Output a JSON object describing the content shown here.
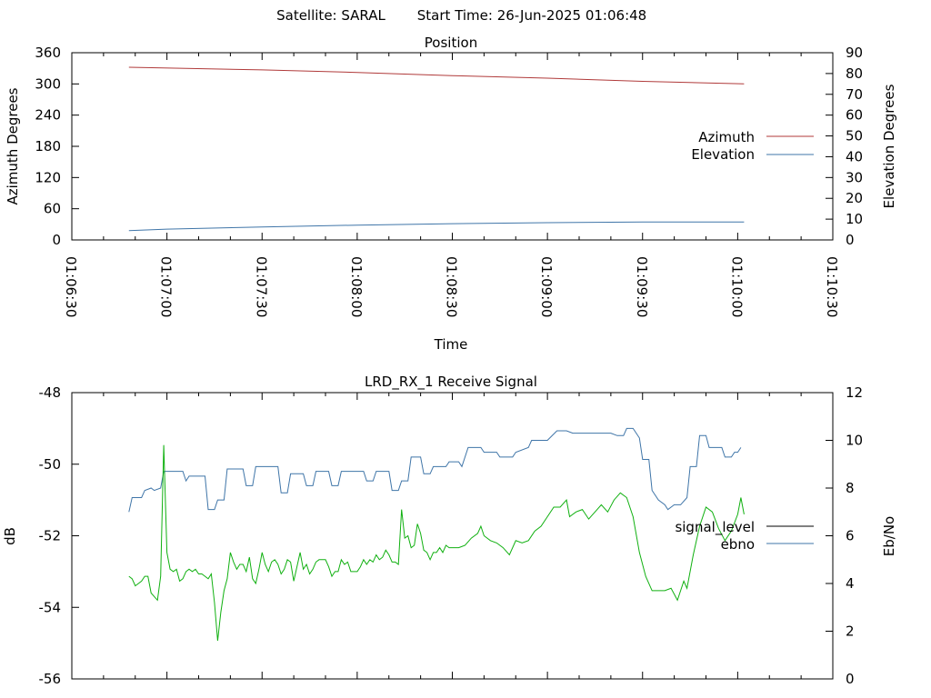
{
  "header": {
    "satellite": "Satellite: SARAL",
    "start_time": "Start Time: 26-Jun-2025 01:06:48"
  },
  "chart_data": [
    {
      "type": "line",
      "title": "Position",
      "xlabel": "Time",
      "ylabel": "Azimuth Degrees",
      "y2label": "Elevation Degrees",
      "xlim": [
        "01:06:30",
        "01:10:30"
      ],
      "x_ticks": [
        "01:06:30",
        "01:07:00",
        "01:07:30",
        "01:08:00",
        "01:08:30",
        "01:09:00",
        "01:09:30",
        "01:10:00",
        "01:10:30"
      ],
      "ylim": [
        0,
        360
      ],
      "y_ticks": [
        "0",
        "60",
        "120",
        "180",
        "240",
        "300",
        "360"
      ],
      "y2lim": [
        0,
        90
      ],
      "y2_ticks": [
        "0",
        "10",
        "20",
        "30",
        "40",
        "50",
        "60",
        "70",
        "80",
        "90"
      ],
      "legend_position": "right",
      "series": [
        {
          "name": "Azimuth",
          "axis": "left",
          "color": "#b03a3a",
          "points": [
            [
              "01:06:48",
              332
            ],
            [
              "01:07:30",
              327
            ],
            [
              "01:08:00",
              322
            ],
            [
              "01:08:30",
              316
            ],
            [
              "01:09:00",
              311
            ],
            [
              "01:09:30",
              305
            ],
            [
              "01:10:02",
              300
            ]
          ]
        },
        {
          "name": "Elevation",
          "axis": "right",
          "color": "#3f75a8",
          "points": [
            [
              "01:06:48",
              4.5
            ],
            [
              "01:07:00",
              5.2
            ],
            [
              "01:07:30",
              6.2
            ],
            [
              "01:08:00",
              7.1
            ],
            [
              "01:08:30",
              7.8
            ],
            [
              "01:09:00",
              8.3
            ],
            [
              "01:09:30",
              8.6
            ],
            [
              "01:10:02",
              8.6
            ]
          ]
        }
      ]
    },
    {
      "type": "line",
      "title": "LRD_RX_1 Receive Signal",
      "ylabel": "dB",
      "y2label": "Eb/No",
      "xlim": [
        "01:06:30",
        "01:10:30"
      ],
      "ylim": [
        -56,
        -48
      ],
      "y_ticks": [
        "-56",
        "-54",
        "-52",
        "-50",
        "-48"
      ],
      "y2lim": [
        0,
        12
      ],
      "y2_ticks": [
        "0",
        "2",
        "4",
        "6",
        "8",
        "10",
        "12"
      ],
      "legend_position": "right",
      "series": [
        {
          "name": "signal_level",
          "axis": "left",
          "color": "#000000",
          "points": []
        },
        {
          "name": "ebno",
          "axis": "right",
          "color": "#3f75a8",
          "points": [
            [
              "01:06:48",
              7.0
            ],
            [
              "01:06:49",
              7.6
            ],
            [
              "01:06:52",
              7.6
            ],
            [
              "01:06:53",
              7.9
            ],
            [
              "01:06:55",
              8.0
            ],
            [
              "01:06:56",
              7.9
            ],
            [
              "01:06:58",
              8.0
            ],
            [
              "01:06:59",
              8.7
            ],
            [
              "01:07:05",
              8.7
            ],
            [
              "01:07:06",
              8.3
            ],
            [
              "01:07:07",
              8.5
            ],
            [
              "01:07:12",
              8.5
            ],
            [
              "01:07:13",
              7.1
            ],
            [
              "01:07:15",
              7.1
            ],
            [
              "01:07:16",
              7.5
            ],
            [
              "01:07:18",
              7.5
            ],
            [
              "01:07:19",
              8.8
            ],
            [
              "01:07:24",
              8.8
            ],
            [
              "01:07:25",
              8.1
            ],
            [
              "01:07:27",
              8.1
            ],
            [
              "01:07:28",
              8.9
            ],
            [
              "01:07:35",
              8.9
            ],
            [
              "01:07:36",
              7.8
            ],
            [
              "01:07:38",
              7.8
            ],
            [
              "01:07:39",
              8.6
            ],
            [
              "01:07:42",
              8.6
            ],
            [
              "01:07:43",
              8.6
            ],
            [
              "01:07:44",
              8.1
            ],
            [
              "01:07:46",
              8.1
            ],
            [
              "01:07:47",
              8.7
            ],
            [
              "01:07:51",
              8.7
            ],
            [
              "01:07:52",
              8.1
            ],
            [
              "01:07:54",
              8.1
            ],
            [
              "01:07:55",
              8.7
            ],
            [
              "01:08:02",
              8.7
            ],
            [
              "01:08:03",
              8.3
            ],
            [
              "01:08:05",
              8.3
            ],
            [
              "01:08:06",
              8.7
            ],
            [
              "01:08:10",
              8.7
            ],
            [
              "01:08:11",
              7.9
            ],
            [
              "01:08:13",
              7.9
            ],
            [
              "01:08:14",
              8.3
            ],
            [
              "01:08:16",
              8.3
            ],
            [
              "01:08:17",
              9.3
            ],
            [
              "01:08:20",
              9.3
            ],
            [
              "01:08:21",
              8.6
            ],
            [
              "01:08:23",
              8.6
            ],
            [
              "01:08:24",
              8.9
            ],
            [
              "01:08:28",
              8.9
            ],
            [
              "01:08:29",
              9.1
            ],
            [
              "01:08:32",
              9.1
            ],
            [
              "01:08:33",
              8.9
            ],
            [
              "01:08:35",
              9.7
            ],
            [
              "01:08:39",
              9.7
            ],
            [
              "01:08:40",
              9.5
            ],
            [
              "01:08:44",
              9.5
            ],
            [
              "01:08:45",
              9.3
            ],
            [
              "01:08:49",
              9.3
            ],
            [
              "01:08:50",
              9.5
            ],
            [
              "01:08:54",
              9.7
            ],
            [
              "01:08:55",
              10.0
            ],
            [
              "01:09:00",
              10.0
            ],
            [
              "01:09:03",
              10.4
            ],
            [
              "01:09:06",
              10.4
            ],
            [
              "01:09:08",
              10.3
            ],
            [
              "01:09:10",
              10.3
            ],
            [
              "01:09:12",
              10.3
            ],
            [
              "01:09:20",
              10.3
            ],
            [
              "01:09:22",
              10.2
            ],
            [
              "01:09:24",
              10.2
            ],
            [
              "01:09:25",
              10.5
            ],
            [
              "01:09:27",
              10.5
            ],
            [
              "01:09:29",
              10.1
            ],
            [
              "01:09:30",
              9.2
            ],
            [
              "01:09:32",
              9.2
            ],
            [
              "01:09:33",
              7.9
            ],
            [
              "01:09:35",
              7.5
            ],
            [
              "01:09:37",
              7.3
            ],
            [
              "01:09:38",
              7.1
            ],
            [
              "01:09:40",
              7.3
            ],
            [
              "01:09:42",
              7.3
            ],
            [
              "01:09:44",
              7.6
            ],
            [
              "01:09:45",
              8.9
            ],
            [
              "01:09:47",
              8.9
            ],
            [
              "01:09:48",
              10.2
            ],
            [
              "01:09:50",
              10.2
            ],
            [
              "01:09:51",
              9.7
            ],
            [
              "01:09:55",
              9.7
            ],
            [
              "01:09:56",
              9.3
            ],
            [
              "01:09:58",
              9.3
            ],
            [
              "01:09:59",
              9.5
            ],
            [
              "01:10:00",
              9.5
            ],
            [
              "01:10:01",
              9.7
            ]
          ]
        }
      ],
      "extra_series": {
        "color": "#10b010",
        "axis": "right",
        "points": [
          [
            "01:06:48",
            4.3
          ],
          [
            "01:06:49",
            4.2
          ],
          [
            "01:06:50",
            3.9
          ],
          [
            "01:06:52",
            4.1
          ],
          [
            "01:06:53",
            4.3
          ],
          [
            "01:06:54",
            4.3
          ],
          [
            "01:06:55",
            3.6
          ],
          [
            "01:06:57",
            3.3
          ],
          [
            "01:06:58",
            4.3
          ],
          [
            "01:06:59",
            9.8
          ],
          [
            "01:07:00",
            5.3
          ],
          [
            "01:07:01",
            4.6
          ],
          [
            "01:07:02",
            4.5
          ],
          [
            "01:07:03",
            4.6
          ],
          [
            "01:07:04",
            4.1
          ],
          [
            "01:07:05",
            4.2
          ],
          [
            "01:07:06",
            4.5
          ],
          [
            "01:07:07",
            4.6
          ],
          [
            "01:07:08",
            4.5
          ],
          [
            "01:07:09",
            4.6
          ],
          [
            "01:07:10",
            4.4
          ],
          [
            "01:07:11",
            4.4
          ],
          [
            "01:07:12",
            4.3
          ],
          [
            "01:07:13",
            4.2
          ],
          [
            "01:07:14",
            4.4
          ],
          [
            "01:07:15",
            3.2
          ],
          [
            "01:07:16",
            1.6
          ],
          [
            "01:07:17",
            2.8
          ],
          [
            "01:07:18",
            3.7
          ],
          [
            "01:07:19",
            4.2
          ],
          [
            "01:07:20",
            5.3
          ],
          [
            "01:07:21",
            4.9
          ],
          [
            "01:07:22",
            4.6
          ],
          [
            "01:07:23",
            4.8
          ],
          [
            "01:07:24",
            4.8
          ],
          [
            "01:07:25",
            4.5
          ],
          [
            "01:07:26",
            5.1
          ],
          [
            "01:07:27",
            4.2
          ],
          [
            "01:07:28",
            4.0
          ],
          [
            "01:07:29",
            4.6
          ],
          [
            "01:07:30",
            5.3
          ],
          [
            "01:07:31",
            4.8
          ],
          [
            "01:07:32",
            4.5
          ],
          [
            "01:07:33",
            4.9
          ],
          [
            "01:07:34",
            5.0
          ],
          [
            "01:07:35",
            4.8
          ],
          [
            "01:07:36",
            4.4
          ],
          [
            "01:07:37",
            4.6
          ],
          [
            "01:07:38",
            5.0
          ],
          [
            "01:07:39",
            4.9
          ],
          [
            "01:07:40",
            4.1
          ],
          [
            "01:07:41",
            4.7
          ],
          [
            "01:07:42",
            5.3
          ],
          [
            "01:07:43",
            4.6
          ],
          [
            "01:07:44",
            4.8
          ],
          [
            "01:07:45",
            4.4
          ],
          [
            "01:07:46",
            4.6
          ],
          [
            "01:07:47",
            4.9
          ],
          [
            "01:07:48",
            5.0
          ],
          [
            "01:07:50",
            5.0
          ],
          [
            "01:07:51",
            4.7
          ],
          [
            "01:07:52",
            4.3
          ],
          [
            "01:07:53",
            4.5
          ],
          [
            "01:07:54",
            4.5
          ],
          [
            "01:07:55",
            5.0
          ],
          [
            "01:07:56",
            4.8
          ],
          [
            "01:07:57",
            4.9
          ],
          [
            "01:07:58",
            4.5
          ],
          [
            "01:07:59",
            4.5
          ],
          [
            "01:08:00",
            4.5
          ],
          [
            "01:08:01",
            4.7
          ],
          [
            "01:08:02",
            5.0
          ],
          [
            "01:08:03",
            4.8
          ],
          [
            "01:08:04",
            5.0
          ],
          [
            "01:08:05",
            4.9
          ],
          [
            "01:08:06",
            5.2
          ],
          [
            "01:08:07",
            5.0
          ],
          [
            "01:08:08",
            5.1
          ],
          [
            "01:08:09",
            5.4
          ],
          [
            "01:08:10",
            5.2
          ],
          [
            "01:08:11",
            4.9
          ],
          [
            "01:08:12",
            4.9
          ],
          [
            "01:08:13",
            4.8
          ],
          [
            "01:08:14",
            7.1
          ],
          [
            "01:08:15",
            5.9
          ],
          [
            "01:08:16",
            6.0
          ],
          [
            "01:08:17",
            5.5
          ],
          [
            "01:08:18",
            5.6
          ],
          [
            "01:08:19",
            6.5
          ],
          [
            "01:08:20",
            6.1
          ],
          [
            "01:08:21",
            5.4
          ],
          [
            "01:08:22",
            5.3
          ],
          [
            "01:08:23",
            5.0
          ],
          [
            "01:08:24",
            5.3
          ],
          [
            "01:08:25",
            5.3
          ],
          [
            "01:08:26",
            5.5
          ],
          [
            "01:08:27",
            5.3
          ],
          [
            "01:08:28",
            5.6
          ],
          [
            "01:08:29",
            5.5
          ],
          [
            "01:08:30",
            5.5
          ],
          [
            "01:08:32",
            5.5
          ],
          [
            "01:08:34",
            5.6
          ],
          [
            "01:08:36",
            5.9
          ],
          [
            "01:08:38",
            6.1
          ],
          [
            "01:08:39",
            6.4
          ],
          [
            "01:08:40",
            6.0
          ],
          [
            "01:08:42",
            5.8
          ],
          [
            "01:08:44",
            5.7
          ],
          [
            "01:08:46",
            5.5
          ],
          [
            "01:08:48",
            5.2
          ],
          [
            "01:08:50",
            5.8
          ],
          [
            "01:08:52",
            5.7
          ],
          [
            "01:08:54",
            5.8
          ],
          [
            "01:08:56",
            6.2
          ],
          [
            "01:08:58",
            6.4
          ],
          [
            "01:09:00",
            6.8
          ],
          [
            "01:09:02",
            7.2
          ],
          [
            "01:09:04",
            7.2
          ],
          [
            "01:09:06",
            7.5
          ],
          [
            "01:09:07",
            6.8
          ],
          [
            "01:09:09",
            7.0
          ],
          [
            "01:09:11",
            7.1
          ],
          [
            "01:09:13",
            6.7
          ],
          [
            "01:09:15",
            7.0
          ],
          [
            "01:09:17",
            7.3
          ],
          [
            "01:09:19",
            7.0
          ],
          [
            "01:09:21",
            7.5
          ],
          [
            "01:09:23",
            7.8
          ],
          [
            "01:09:25",
            7.6
          ],
          [
            "01:09:27",
            6.8
          ],
          [
            "01:09:29",
            5.3
          ],
          [
            "01:09:31",
            4.3
          ],
          [
            "01:09:33",
            3.7
          ],
          [
            "01:09:35",
            3.7
          ],
          [
            "01:09:37",
            3.7
          ],
          [
            "01:09:39",
            3.8
          ],
          [
            "01:09:41",
            3.3
          ],
          [
            "01:09:43",
            4.1
          ],
          [
            "01:09:44",
            3.8
          ],
          [
            "01:09:46",
            5.2
          ],
          [
            "01:09:48",
            6.4
          ],
          [
            "01:09:50",
            7.2
          ],
          [
            "01:09:52",
            7.0
          ],
          [
            "01:09:54",
            6.3
          ],
          [
            "01:09:56",
            5.8
          ],
          [
            "01:09:58",
            6.2
          ],
          [
            "01:10:00",
            6.9
          ],
          [
            "01:10:01",
            7.6
          ],
          [
            "01:10:02",
            6.9
          ]
        ]
      }
    }
  ]
}
